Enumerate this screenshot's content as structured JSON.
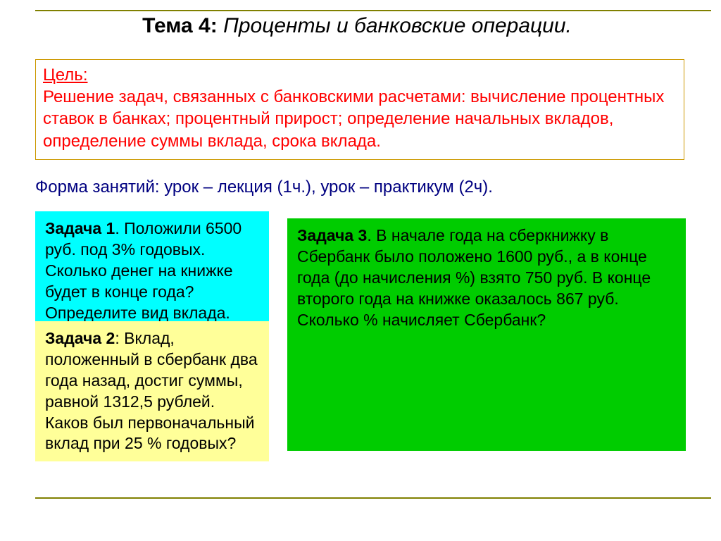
{
  "title": {
    "label": "Тема 4:",
    "text": "Проценты и банковские операции."
  },
  "goal": {
    "label": "Цель:",
    "text": "Решение задач, связанных с банковскими расчетами: вычисление процентных ставок в банках; процентный прирост; определение начальных вкладов, определение суммы вклада, срока вклада."
  },
  "form_line": "Форма занятий: урок – лекция (1ч.), урок – практикум (2ч).",
  "task1": {
    "label": "Задача 1",
    "text": ". Положили 6500 руб. под 3% годовых. Сколько денег на книжке  будет в конце года? Определите вид вклада."
  },
  "task2": {
    "label": "Задача 2",
    "text": ": Вклад, положенный в сбербанк два года назад, достиг суммы, равной 1312,5 рублей. Каков был первоначальный вклад при 25 % годовых?"
  },
  "task3": {
    "label": "Задача 3",
    "text": ". В начале года на сберкнижку в Сбербанк было положено 1600 руб., а в конце года (до начисления %) взято 750 руб. В конце второго года на книжке оказалось 867 руб. Сколько % начисляет Сбербанк?"
  },
  "colors": {
    "accent_rule": "#808000",
    "goal_border": "#cc9900",
    "goal_text": "#ff0000",
    "form_text": "#000080",
    "box1_bg": "#00ffff",
    "box2_bg": "#ffff99",
    "box3_bg": "#00cc00"
  }
}
